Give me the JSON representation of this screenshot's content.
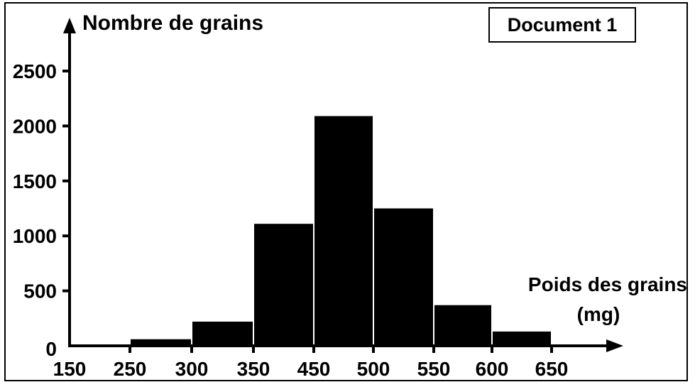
{
  "document_label": "Document 1",
  "chart_data": {
    "type": "bar",
    "ylabel": "Nombre de grains",
    "xlabel_line1": "Poids des grains",
    "xlabel_line2": "(mg)",
    "x_tick_labels": [
      "150",
      "250",
      "300",
      "350",
      "450",
      "500",
      "550",
      "600",
      "650"
    ],
    "y_ticks": [
      0,
      500,
      1000,
      1500,
      2000,
      2500
    ],
    "ylim": [
      0,
      2800
    ],
    "bins": [
      {
        "from": "250",
        "to": "300",
        "value": 60
      },
      {
        "from": "300",
        "to": "350",
        "value": 220
      },
      {
        "from": "350",
        "to": "450",
        "value": 1110
      },
      {
        "from": "450",
        "to": "500",
        "value": 2090
      },
      {
        "from": "500",
        "to": "550",
        "value": 1250
      },
      {
        "from": "550",
        "to": "600",
        "value": 370
      },
      {
        "from": "600",
        "to": "650",
        "value": 130
      }
    ],
    "bar_color": "#000000",
    "grid": false
  }
}
